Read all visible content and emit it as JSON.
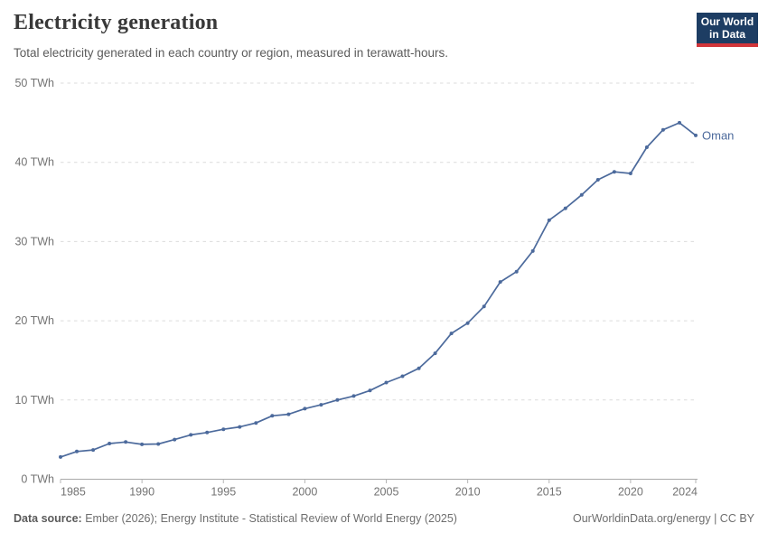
{
  "header": {
    "title": "Electricity generation",
    "subtitle": "Total electricity generated in each country or region, measured in terawatt-hours.",
    "logo": {
      "line1": "Our World",
      "line2": "in Data"
    }
  },
  "chart_data": {
    "type": "line",
    "title": "Electricity generation",
    "ylabel": "",
    "xlabel": "",
    "unit": "TWh",
    "xlim": [
      1985,
      2024
    ],
    "ylim": [
      0,
      50
    ],
    "grid": "dashed-horizontal-gridlines",
    "legend_position": "end-of-line-label",
    "x_ticks": [
      1985,
      1990,
      1995,
      2000,
      2005,
      2010,
      2015,
      2020,
      2024
    ],
    "y_ticks": [
      0,
      10,
      20,
      30,
      40,
      50
    ],
    "y_tick_suffix": " TWh",
    "x": [
      1985,
      1986,
      1987,
      1988,
      1989,
      1990,
      1991,
      1992,
      1993,
      1994,
      1995,
      1996,
      1997,
      1998,
      1999,
      2000,
      2001,
      2002,
      2003,
      2004,
      2005,
      2006,
      2007,
      2008,
      2009,
      2010,
      2011,
      2012,
      2013,
      2014,
      2015,
      2016,
      2017,
      2018,
      2019,
      2020,
      2021,
      2022,
      2023,
      2024
    ],
    "series": [
      {
        "name": "Oman",
        "color": "#4C6A9C",
        "values": [
          2.8,
          3.5,
          3.7,
          4.5,
          4.7,
          4.4,
          4.45,
          5.0,
          5.6,
          5.9,
          6.3,
          6.6,
          7.1,
          8.0,
          8.2,
          8.9,
          9.4,
          10.0,
          10.5,
          11.2,
          12.2,
          13.0,
          14.0,
          15.9,
          18.4,
          19.7,
          21.8,
          24.9,
          26.2,
          28.8,
          32.7,
          34.2,
          35.9,
          37.8,
          38.8,
          38.6,
          41.9,
          44.1,
          45.0,
          43.4
        ]
      }
    ]
  },
  "footer": {
    "source_label": "Data source:",
    "source_text": " Ember (2026); Energy Institute - Statistical Review of World Energy (2025)",
    "credit": "OurWorldinData.org/energy | CC BY"
  },
  "colors": {
    "line": "#4C6A9C",
    "gridline": "#dcdcdc",
    "axis": "#a9a9a9",
    "tick_mark": "#b5b5b5",
    "tick_label": "#737373",
    "logo_bg": "#1d3d63",
    "logo_red": "#d1353a"
  }
}
